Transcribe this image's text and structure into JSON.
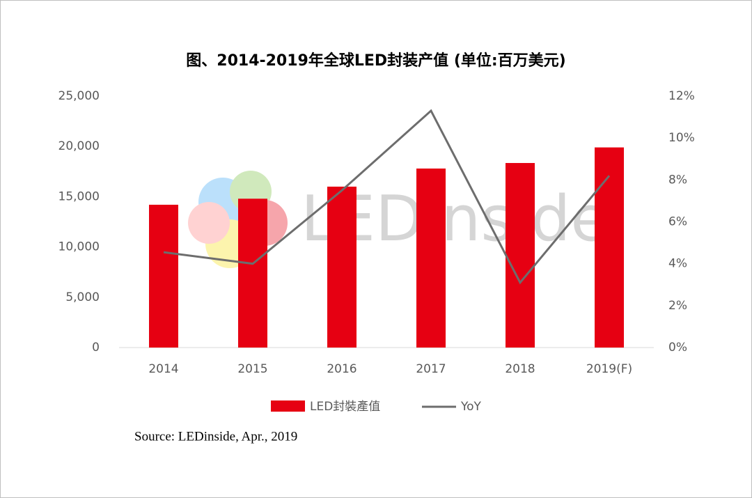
{
  "chart_data": {
    "type": "bar_line",
    "title": "图、2014-2019年全球LED封装产值 (单位:百万美元)",
    "categories": [
      "2014",
      "2015",
      "2016",
      "2017",
      "2018",
      "2019(F)"
    ],
    "series": [
      {
        "name": "LED封裝產值",
        "color": "#e60012",
        "type": "bar",
        "values": [
          14200,
          14800,
          16000,
          17800,
          18350,
          19900
        ]
      },
      {
        "name": "YoY",
        "color": "#6d6d6d",
        "type": "line",
        "axis": "y2",
        "values": [
          4.55,
          4.0,
          7.5,
          11.3,
          3.1,
          8.2
        ]
      }
    ],
    "ylim": [
      0,
      25000
    ],
    "yticks": [
      0,
      {
        "value": 5000,
        "label": "5,000"
      },
      {
        "value": 10000,
        "label": "10,000"
      },
      {
        "value": 15000,
        "label": "15,000"
      },
      {
        "value": 20000,
        "label": "20,000"
      },
      {
        "value": 25000,
        "label": "25,000"
      }
    ],
    "y2lim": [
      0,
      12
    ],
    "y2ticks": [
      {
        "value": 0,
        "label": "0%"
      },
      {
        "value": 2,
        "label": "2%"
      },
      {
        "value": 4,
        "label": "4%"
      },
      {
        "value": 6,
        "label": "6%"
      },
      {
        "value": 8,
        "label": "8%"
      },
      {
        "value": 10,
        "label": "10%"
      },
      {
        "value": 12,
        "label": "12%"
      }
    ],
    "legend": "bottom",
    "watermark": "LEDinside",
    "source": "Source: LEDinside, Apr., 2019"
  }
}
